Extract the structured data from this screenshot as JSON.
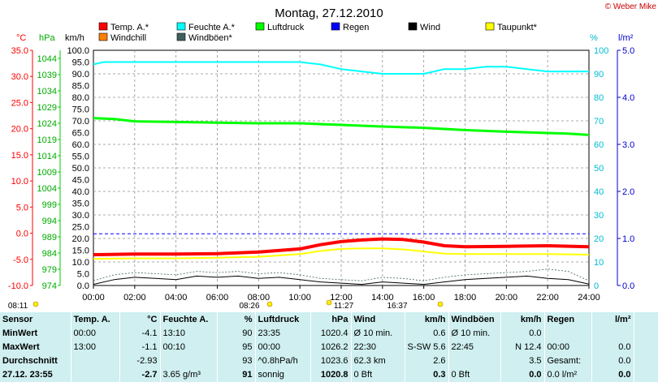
{
  "title": "Montag, 27.12.2010",
  "credit": "© Weber Mike",
  "axis_units": {
    "c": "°C",
    "hpa": "hPa",
    "kmh": "km/h",
    "pct": "%",
    "rain": "l/m²"
  },
  "legend": [
    {
      "label": "Temp. A.*",
      "color": "#ff0000"
    },
    {
      "label": "Feuchte A.*",
      "color": "#00ffff"
    },
    {
      "label": "Luftdruck",
      "color": "#00ff00"
    },
    {
      "label": "Regen",
      "color": "#0000ff"
    },
    {
      "label": "Wind",
      "color": "#000000"
    },
    {
      "label": "Taupunkt*",
      "color": "#ffff00"
    },
    {
      "label": "Windchill",
      "color": "#ff8000"
    },
    {
      "label": "Windböen*",
      "color": "#406060"
    }
  ],
  "sun_events": [
    {
      "label": "08:11",
      "time": "08:11"
    },
    {
      "label": "08:26",
      "time": "08:26"
    },
    {
      "label": "11:27",
      "time": "11:27"
    },
    {
      "label": "16:37",
      "time": "16:37"
    }
  ],
  "chart_data": {
    "type": "line",
    "title": "Montag, 27.12.2010",
    "x_range": [
      "00:00",
      "24:00"
    ],
    "x_ticks": [
      "00:00",
      "02:00",
      "04:00",
      "06:00",
      "08:00",
      "10:00",
      "12:00",
      "14:00",
      "16:00",
      "18:00",
      "20:00",
      "22:00",
      "24:00"
    ],
    "axes": {
      "temperature_c": {
        "range": [
          -10,
          35
        ],
        "ticks": [
          "35.0",
          "30.0",
          "25.0",
          "20.0",
          "15.0",
          "10.0",
          "5.0",
          "0.0",
          "-5.0",
          "-10.0"
        ]
      },
      "pressure_hpa": {
        "range": [
          974,
          1046.5
        ],
        "ticks": [
          "1044",
          "1039",
          "1034",
          "1029",
          "1024",
          "1019",
          "1014",
          "1009",
          "1004",
          "999",
          "994",
          "989",
          "984",
          "979",
          "974"
        ]
      },
      "wind_kmh": {
        "range": [
          0,
          100
        ],
        "ticks": [
          "100.0",
          "95.0",
          "90.0",
          "85.0",
          "80.0",
          "75.0",
          "70.0",
          "65.0",
          "60.0",
          "55.0",
          "50.0",
          "45.0",
          "40.0",
          "35.0",
          "30.0",
          "25.0",
          "20.0",
          "15.0",
          "10.0",
          "5.0",
          "0.0"
        ]
      },
      "humidity_pct": {
        "range": [
          0,
          100
        ],
        "ticks": [
          "100",
          "90",
          "80",
          "70",
          "60",
          "50",
          "40",
          "30",
          "20",
          "10",
          "0"
        ]
      },
      "rain_lm2": {
        "range": [
          0,
          5
        ],
        "ticks": [
          "5.0",
          "4.0",
          "3.0",
          "2.0",
          "1.0",
          "0.0"
        ]
      }
    },
    "grid": true,
    "series": [
      {
        "name": "Feuchte A.*",
        "axis": "humidity_pct",
        "color": "#00ffff",
        "x": [
          0,
          0.5,
          2,
          4,
          6,
          8,
          9,
          10,
          11,
          11.5,
          12,
          13,
          14,
          15,
          16,
          16.5,
          17,
          18,
          19,
          20,
          21,
          22,
          23,
          24
        ],
        "y": [
          94,
          95,
          95,
          95,
          95,
          95,
          95,
          95,
          94,
          93,
          92,
          91,
          90,
          90,
          90,
          91,
          92,
          92,
          93,
          93,
          92,
          91,
          91,
          91
        ]
      },
      {
        "name": "Luftdruck",
        "axis": "pressure_hpa",
        "color": "#00ff00",
        "x": [
          0,
          1,
          2,
          4,
          6,
          8,
          10,
          12,
          14,
          16,
          18,
          20,
          22,
          23,
          24
        ],
        "y": [
          1025.6,
          1025.3,
          1024.6,
          1024.4,
          1024.2,
          1024.0,
          1024.0,
          1023.5,
          1023.0,
          1022.6,
          1021.9,
          1021.4,
          1021.0,
          1020.8,
          1020.4
        ]
      },
      {
        "name": "Temp. A.*",
        "axis": "temperature_c",
        "color": "#ff0000",
        "x": [
          0,
          2,
          4,
          6,
          8,
          10,
          11,
          12,
          13,
          14,
          15,
          16,
          17,
          18,
          20,
          22,
          24
        ],
        "y": [
          -4.1,
          -4.0,
          -4.0,
          -3.9,
          -3.6,
          -3.0,
          -2.2,
          -1.6,
          -1.3,
          -1.1,
          -1.2,
          -1.7,
          -2.4,
          -2.6,
          -2.5,
          -2.4,
          -2.6
        ]
      },
      {
        "name": "Taupunkt*",
        "axis": "temperature_c",
        "color": "#ffff00",
        "x": [
          0,
          2,
          4,
          6,
          8,
          10,
          11,
          12,
          13,
          14,
          15,
          16,
          17,
          18,
          20,
          22,
          24
        ],
        "y": [
          -4.9,
          -4.8,
          -4.8,
          -4.7,
          -4.5,
          -4.0,
          -3.4,
          -3.0,
          -2.9,
          -2.9,
          -3.1,
          -3.5,
          -3.9,
          -4.0,
          -4.0,
          -4.0,
          -4.1
        ]
      },
      {
        "name": "Wind",
        "axis": "wind_kmh",
        "color": "#000000",
        "x": [
          0,
          1,
          2,
          3,
          4,
          5,
          6,
          7,
          8,
          9,
          10,
          11,
          12,
          13,
          14,
          15,
          16,
          17,
          18,
          19,
          20,
          21,
          22,
          23,
          24
        ],
        "y": [
          0.5,
          2.5,
          3.5,
          3.0,
          2.5,
          4.0,
          3.5,
          4.0,
          3.0,
          3.5,
          2.5,
          1.5,
          1.0,
          0.5,
          1.5,
          1.0,
          0.5,
          1.5,
          2.5,
          3.0,
          3.5,
          4.0,
          3.0,
          2.5,
          0.6
        ]
      },
      {
        "name": "Windböen*",
        "axis": "wind_kmh",
        "color": "#406060",
        "x": [
          0,
          1,
          2,
          3,
          4,
          5,
          6,
          7,
          8,
          9,
          10,
          11,
          12,
          13,
          14,
          15,
          16,
          17,
          18,
          19,
          20,
          21,
          22,
          23,
          24
        ],
        "y": [
          2.0,
          4.5,
          5.5,
          5.0,
          4.5,
          6.0,
          5.5,
          6.0,
          5.0,
          5.5,
          4.5,
          3.0,
          2.5,
          2.0,
          3.5,
          3.0,
          2.0,
          3.5,
          4.5,
          5.0,
          5.5,
          6.0,
          7.0,
          6.0,
          2.0
        ]
      },
      {
        "name": "Regen",
        "axis": "rain_lm2",
        "color": "#0000ff",
        "x": [
          0,
          24
        ],
        "y": [
          1.1,
          1.1
        ]
      }
    ]
  },
  "stats": {
    "head": {
      "sensor": "Sensor",
      "temp": "Temp. A.",
      "temp_u": "°C",
      "hum": "Feuchte A.",
      "hum_u": "%",
      "press": "Luftdruck",
      "press_u": "hPa",
      "wind": "Wind",
      "wind_u": "km/h",
      "gust": "Windböen",
      "gust_u": "km/h",
      "rain": "Regen",
      "rain_u": "l/m²"
    },
    "rows": [
      {
        "label": "MinWert",
        "t_time": "00:00",
        "t_val": "-4.1",
        "h_time": "13:10",
        "h_val": "90",
        "p_time": "23:35",
        "p_val": "1020.4",
        "w_text": "Ø 10 min.",
        "w_val": "0.6",
        "g_text": "Ø 10 min.",
        "g_val": "0.0",
        "r_text": "",
        "r_val": ""
      },
      {
        "label": "MaxWert",
        "t_time": "13:00",
        "t_val": "-1.1",
        "h_time": "00:10",
        "h_val": "95",
        "p_time": "00:00",
        "p_val": "1026.2",
        "w_text": "22:30",
        "w_val": "S-SW 5.6",
        "g_text": "22:45",
        "g_val": "N 12.4",
        "r_text": "00:00",
        "r_val": "0.0"
      },
      {
        "label": "Durchschnitt",
        "t_time": "",
        "t_val": "-2.93",
        "h_time": "",
        "h_val": "93",
        "p_time": "^0.8hPa/h",
        "p_val": "1023.6",
        "w_text": "62.3 km",
        "w_val": "2.6",
        "g_text": "",
        "g_val": "3.5",
        "r_text": "Gesamt:",
        "r_val": "0.0"
      },
      {
        "label": "27.12. 23:55",
        "t_time": "",
        "t_val": "-2.7",
        "h_time": "3.65 g/m³",
        "h_val": "91",
        "p_time": "sonnig",
        "p_val": "1020.8",
        "w_text": "0 Bft",
        "w_val": "0.3",
        "g_text": "0 Bft",
        "g_val": "0.0",
        "r_text": "0.0 l/m²",
        "r_val": "0.0"
      }
    ]
  }
}
